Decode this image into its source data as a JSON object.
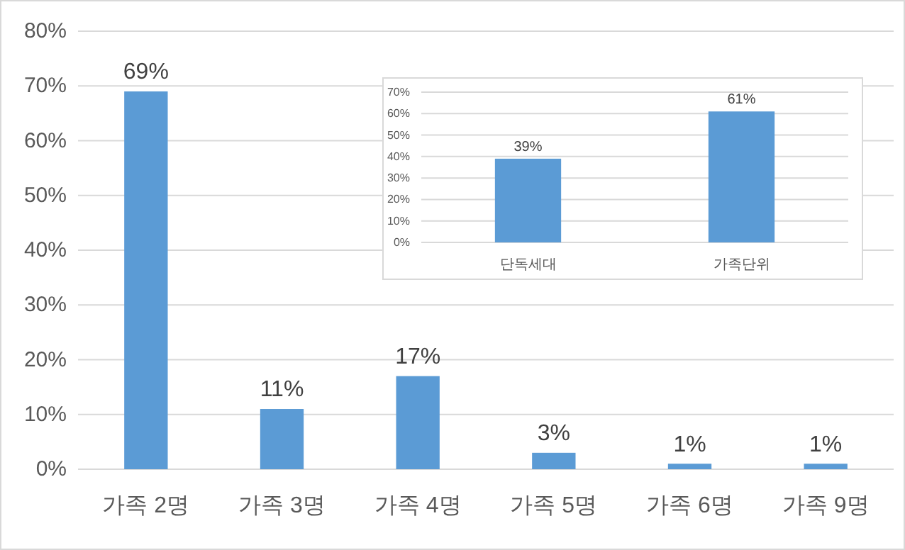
{
  "chart_data": [
    {
      "type": "bar",
      "categories": [
        "가족 2명",
        "가족 3명",
        "가족 4명",
        "가족 5명",
        "가족 6명",
        "가족 9명"
      ],
      "values": [
        69,
        11,
        17,
        3,
        1,
        1
      ],
      "value_labels": [
        "69%",
        "11%",
        "17%",
        "3%",
        "1%",
        "1%"
      ],
      "color": "#5b9bd5",
      "ylim": [
        0,
        80
      ],
      "yticks": [
        {
          "value": 0,
          "label": "0%"
        },
        {
          "value": 10,
          "label": "10%"
        },
        {
          "value": 20,
          "label": "20%"
        },
        {
          "value": 30,
          "label": "30%"
        },
        {
          "value": 40,
          "label": "40%"
        },
        {
          "value": 50,
          "label": "50%"
        },
        {
          "value": 60,
          "label": "60%"
        },
        {
          "value": 70,
          "label": "70%"
        },
        {
          "value": 80,
          "label": "80%"
        }
      ],
      "grid": "y"
    },
    {
      "type": "bar",
      "categories": [
        "단독세대",
        "가족단위"
      ],
      "values": [
        39,
        61
      ],
      "value_labels": [
        "39%",
        "61%"
      ],
      "color": "#5b9bd5",
      "ylim": [
        0,
        70
      ],
      "yticks": [
        {
          "value": 0,
          "label": "0%"
        },
        {
          "value": 10,
          "label": "10%"
        },
        {
          "value": 20,
          "label": "20%"
        },
        {
          "value": 30,
          "label": "30%"
        },
        {
          "value": 40,
          "label": "40%"
        },
        {
          "value": 50,
          "label": "50%"
        },
        {
          "value": 60,
          "label": "60%"
        },
        {
          "value": 70,
          "label": "70%"
        }
      ],
      "grid": "y"
    }
  ]
}
